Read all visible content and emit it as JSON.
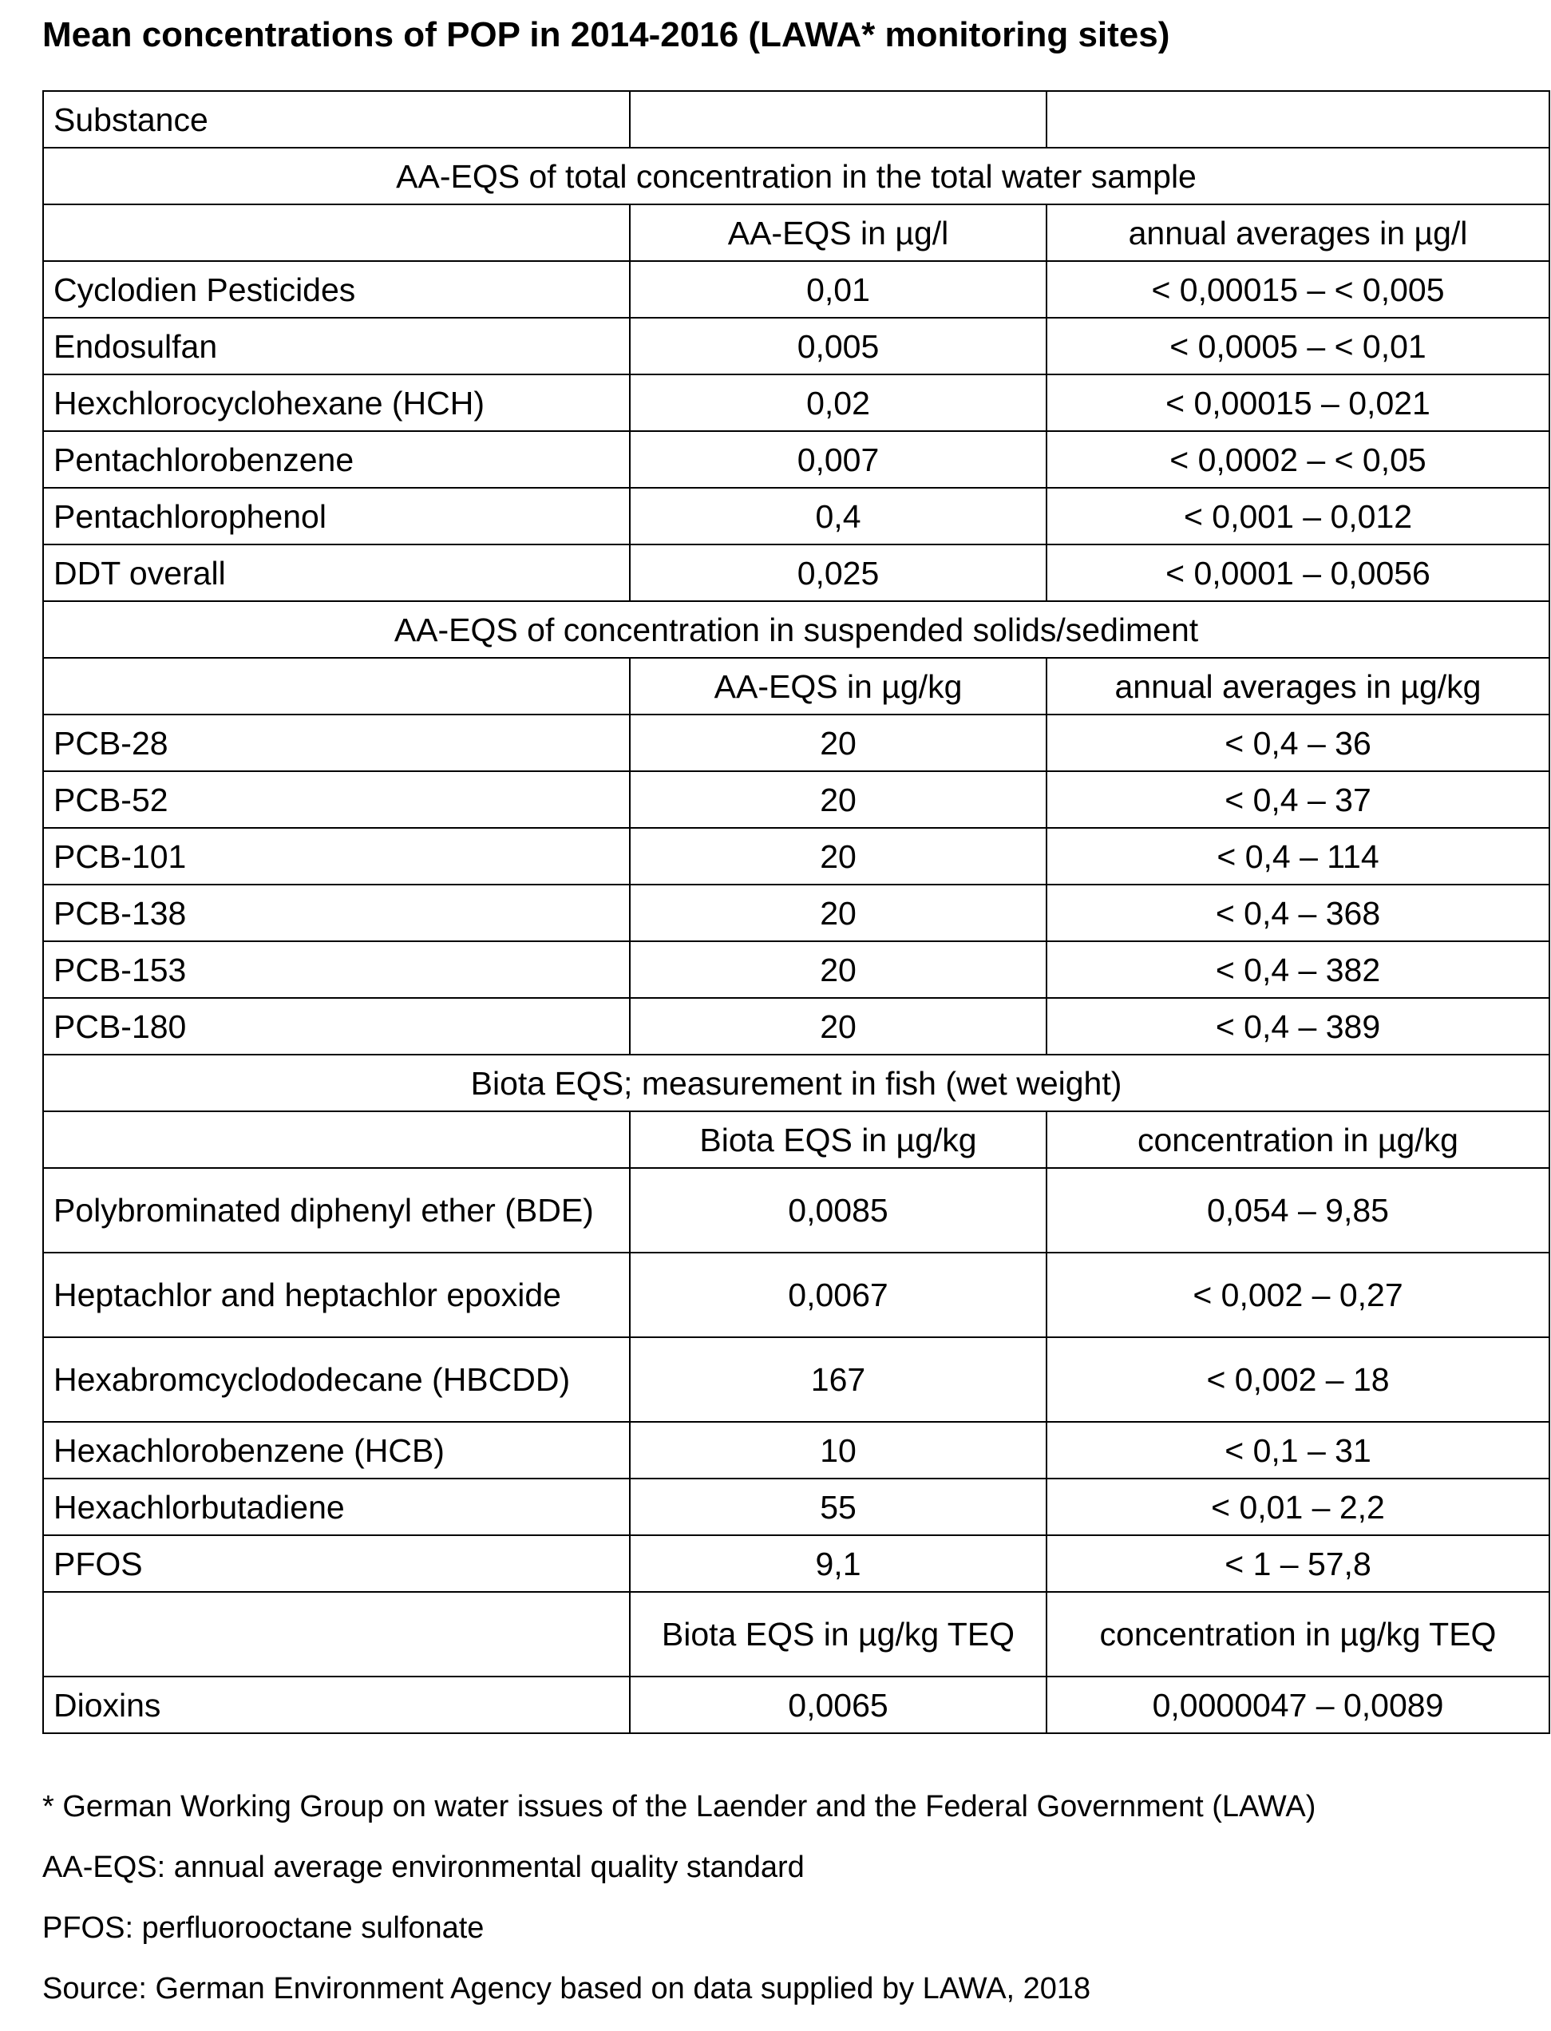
{
  "title": "Mean concentrations of POP in 2014-2016 (LAWA* monitoring sites)",
  "header": {
    "substance": "Substance",
    "col2": "",
    "col3": ""
  },
  "sections": [
    {
      "heading": "AA-EQS of total concentration in the total water sample",
      "col2": "AA-EQS in µg/l",
      "col3": "annual averages in µg/l",
      "rows": [
        [
          "Cyclodien Pesticides",
          "0,01",
          "< 0,00015 – < 0,005"
        ],
        [
          "Endosulfan",
          "0,005",
          "< 0,0005 – < 0,01"
        ],
        [
          "Hexchlorocyclohexane (HCH)",
          "0,02",
          "< 0,00015 – 0,021"
        ],
        [
          "Pentachlorobenzene",
          "0,007",
          "< 0,0002 – < 0,05"
        ],
        [
          "Pentachlorophenol",
          "0,4",
          "< 0,001 – 0,012"
        ],
        [
          "DDT overall",
          "0,025",
          "< 0,0001 – 0,0056"
        ]
      ]
    },
    {
      "heading": "AA-EQS of concentration in suspended solids/sediment",
      "col2": "AA-EQS in µg/kg",
      "col3": "annual averages in µg/kg",
      "rows": [
        [
          "PCB-28",
          "20",
          "< 0,4 – 36"
        ],
        [
          "PCB-52",
          "20",
          "< 0,4 – 37"
        ],
        [
          "PCB-101",
          "20",
          "< 0,4 – 114"
        ],
        [
          "PCB-138",
          "20",
          "< 0,4 – 368"
        ],
        [
          "PCB-153",
          "20",
          "< 0,4 – 382"
        ],
        [
          "PCB-180",
          "20",
          "< 0,4 – 389"
        ]
      ]
    },
    {
      "heading": "Biota EQS; measurement in fish (wet weight)",
      "col2": "Biota EQS in µg/kg",
      "col3": "concentration in µg/kg",
      "rows": [
        [
          "Polybrominated diphenyl ether (BDE)",
          "0,0085",
          "0,054 – 9,85"
        ],
        [
          "Heptachlor and heptachlor epoxide",
          "0,0067",
          "< 0,002 – 0,27"
        ],
        [
          "Hexabromcyclododecane (HBCDD)",
          "167",
          "< 0,002 – 18"
        ],
        [
          "Hexachlorobenzene (HCB)",
          "10",
          "< 0,1 – 31"
        ],
        [
          "Hexachlorbutadiene",
          "55",
          "< 0,01 – 2,2"
        ],
        [
          "PFOS",
          "9,1",
          "< 1 – 57,8"
        ]
      ],
      "sub_header": {
        "col2": "Biota EQS in µg/kg TEQ",
        "col3": "concentration in µg/kg TEQ"
      },
      "sub_rows": [
        [
          "Dioxins",
          "0,0065",
          "0,0000047 – 0,0089"
        ]
      ]
    }
  ],
  "footnotes": [
    "* German Working Group on water issues of the Laender and the Federal Government (LAWA)",
    "AA-EQS: annual average environmental quality standard",
    "PFOS: perfluorooctane sulfonate",
    "Source: German Environment Agency based on data supplied by LAWA, 2018"
  ]
}
